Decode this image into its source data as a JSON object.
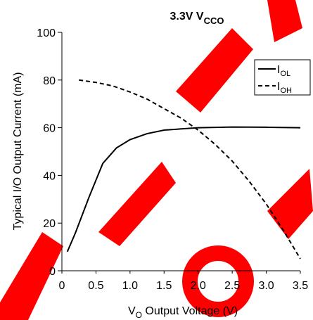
{
  "chart_data": {
    "type": "line",
    "title": {
      "text": "3.3V V",
      "subscript": "CCO"
    },
    "x_label": {
      "text": "V",
      "subscript": "O",
      "rest": " Output Voltage (V)"
    },
    "y_label": "Typical I/O Output Current (mA)",
    "xlim": [
      0,
      3.5
    ],
    "xticks": [
      0,
      0.5,
      {
        "value": 1,
        "label": "1.0"
      },
      1.5,
      {
        "value": 2,
        "label": "2.0"
      },
      2.5,
      {
        "value": 3,
        "label": "3.0"
      },
      3.5
    ],
    "ylim": [
      0,
      100
    ],
    "yticks": [
      0,
      20,
      40,
      60,
      80,
      100
    ],
    "grid": false,
    "legend": "upper right",
    "series": [
      {
        "name": {
          "text": "I",
          "subscript": "OL"
        },
        "color": "#000000",
        "dash": "solid",
        "x": [
          0.08,
          0.2,
          0.4,
          0.6,
          0.8,
          1.0,
          1.25,
          1.5,
          2.0,
          2.5,
          3.0,
          3.5
        ],
        "values": [
          8,
          16,
          31,
          45,
          51.5,
          55,
          57.5,
          59,
          60,
          60.3,
          60.2,
          60
        ]
      },
      {
        "name": {
          "text": "I",
          "subscript": "OH"
        },
        "color": "#000000",
        "dash": "dashed",
        "x": [
          0.25,
          0.5,
          0.75,
          1.0,
          1.25,
          1.5,
          1.75,
          2.0,
          2.25,
          2.5,
          2.75,
          3.0,
          3.25,
          3.5
        ],
        "values": [
          80,
          79,
          77.5,
          75,
          72,
          68,
          64,
          59,
          53,
          46,
          37.5,
          28,
          17,
          5
        ]
      }
    ]
  }
}
